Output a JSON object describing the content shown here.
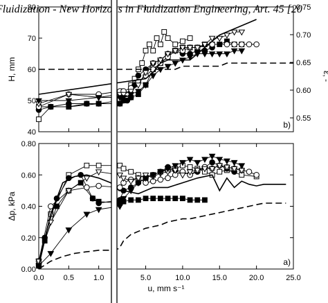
{
  "header": "Fluidization - New Horizons in Fluidization Engineering, Art. 45 [20",
  "chart_data": [
    {
      "panel": "b)",
      "type": "line",
      "ylabel": "H, mm",
      "ylim": [
        40,
        80
      ],
      "yticks": [
        40,
        50,
        60,
        70,
        80
      ],
      "y2label": "ε, -",
      "y2lim": [
        0.525,
        0.75
      ],
      "y2ticks": [
        0.55,
        0.6,
        0.65,
        0.7,
        0.75
      ],
      "xlim": [
        0,
        25
      ],
      "grid": false,
      "series": [
        {
          "marker": "open-square",
          "x": [
            0.0,
            0.2,
            0.5,
            0.8,
            1.0,
            1.5,
            1.8,
            2.5,
            3.0,
            3.5,
            4.0,
            4.5,
            5.0,
            5.5,
            6.0,
            6.5,
            7.0,
            7.5,
            8.0,
            9.0,
            10.0,
            11.0
          ],
          "y": [
            44,
            48,
            48,
            49,
            49,
            50,
            53,
            52,
            55,
            57,
            60,
            62,
            66,
            68,
            66,
            70,
            68,
            72,
            70,
            68,
            69,
            70
          ]
        },
        {
          "marker": "filled-circle",
          "x": [
            0.0,
            0.2,
            0.5,
            0.8,
            1.0,
            1.5,
            2.0,
            2.5,
            3.0,
            3.5,
            4.0,
            5.0,
            6.0,
            7.0,
            8.0,
            9.0,
            10.0,
            11.0,
            12.0,
            13.0,
            14.0
          ],
          "y": [
            47,
            48,
            49,
            49,
            49,
            49,
            50,
            50,
            51,
            55,
            58,
            60,
            62,
            63,
            65,
            66,
            65,
            65,
            66,
            66,
            67
          ]
        },
        {
          "marker": "filled-square",
          "x": [
            0.0,
            0.5,
            1.0,
            1.5,
            2.0,
            3.0,
            4.0,
            5.0,
            6.0,
            7.0,
            8.0,
            9.0,
            10.0,
            11.0,
            12.0,
            13.0,
            14.0,
            15.0,
            16.0,
            17.0,
            18.0
          ],
          "y": [
            48,
            48,
            49,
            49,
            50,
            51,
            52,
            55,
            60,
            62,
            64,
            66,
            67,
            67,
            67,
            68,
            68,
            68,
            69,
            68,
            68
          ]
        },
        {
          "marker": "open-circle",
          "x": [
            0.0,
            0.5,
            1.0,
            1.5,
            2.0,
            3.0,
            4.0,
            5.0,
            6.0,
            7.0,
            8.0,
            9.0,
            10.0,
            11.0,
            12.0,
            14.0,
            16.0,
            17.0,
            18.0,
            19.0,
            20.0
          ],
          "y": [
            48,
            52,
            52,
            53,
            53,
            54,
            56,
            58,
            60,
            62,
            64,
            66,
            66,
            67,
            67,
            68,
            68,
            68,
            68,
            68,
            68
          ]
        },
        {
          "marker": "open-triangle-down",
          "x": [
            0.0,
            0.5,
            1.0,
            1.5,
            2.0,
            3.0,
            4.0,
            5.0,
            6.0,
            7.0,
            8.0,
            9.0,
            10.0,
            11.0,
            12.0,
            13.0,
            14.0,
            15.0,
            16.0,
            17.0,
            18.0
          ],
          "y": [
            49,
            52,
            51,
            52,
            52,
            53,
            55,
            59,
            62,
            63,
            65,
            66,
            67,
            67,
            67,
            68,
            70,
            70,
            71,
            72,
            72
          ]
        },
        {
          "marker": "filled-triangle-down",
          "x": [
            0.0,
            0.5,
            1.0,
            1.5,
            2.0,
            3.0,
            4.0,
            5.0,
            6.0,
            7.0,
            8.0,
            9.0,
            10.0,
            11.0,
            12.0,
            13.0,
            14.0,
            15.0,
            16.0,
            17.0,
            18.0
          ],
          "y": [
            50,
            50,
            51,
            51,
            51,
            52,
            53,
            55,
            58,
            60,
            61,
            62,
            63,
            64,
            65,
            65,
            65,
            65,
            65,
            66,
            66
          ]
        },
        {
          "marker": "none",
          "style": "solid",
          "x": [
            0,
            5,
            6,
            7,
            8,
            9,
            10,
            11,
            12,
            13,
            14,
            15,
            16,
            17,
            18,
            19,
            20
          ],
          "y": [
            52,
            57,
            59,
            62,
            63,
            63,
            63,
            63,
            65,
            67,
            69,
            71,
            72,
            73,
            74,
            75,
            76
          ]
        },
        {
          "marker": "none",
          "style": "dashed",
          "x": [
            0,
            1,
            2,
            3,
            4,
            5,
            6,
            7,
            8,
            9,
            10,
            11,
            12,
            13,
            14,
            15,
            16,
            17,
            18,
            19,
            20,
            21,
            22,
            23,
            24,
            25
          ],
          "y": [
            60,
            60,
            60,
            60,
            60,
            60,
            60,
            60,
            60,
            60,
            61,
            61,
            61,
            61,
            61,
            61,
            62,
            62,
            62,
            62,
            62,
            62,
            62,
            62,
            62,
            62
          ]
        }
      ]
    },
    {
      "panel": "a)",
      "type": "line",
      "xlabel": "u, mm s⁻¹",
      "xlim": [
        0,
        25
      ],
      "xticks": [
        "0.0",
        "0.5",
        "1.0",
        "5.0",
        "10.0",
        "15.0",
        "20.0",
        "25.0"
      ],
      "ylabel": "Δp, kPa",
      "ylim": [
        0,
        0.8
      ],
      "yticks": [
        "0.00",
        "0.20",
        "0.40",
        "0.60",
        "0.80"
      ],
      "grid": false,
      "series": [
        {
          "marker": "open-square",
          "x": [
            0.0,
            0.2,
            0.5,
            0.8,
            1.0,
            1.5,
            2.0,
            3.0,
            4.0,
            5.0,
            6.0,
            7.0,
            8.0,
            9.0,
            10.0,
            11.0,
            12.0,
            13.0,
            14.0,
            15.0,
            16.0,
            18.0,
            20.0
          ],
          "y": [
            0.05,
            0.35,
            0.6,
            0.66,
            0.66,
            0.66,
            0.64,
            0.62,
            0.6,
            0.58,
            0.6,
            0.62,
            0.63,
            0.64,
            0.66,
            0.65,
            0.64,
            0.62,
            0.6,
            0.62,
            0.63,
            0.6,
            0.59
          ]
        },
        {
          "marker": "filled-circle",
          "x": [
            0.0,
            0.1,
            0.3,
            0.5,
            0.7,
            0.9,
            1.0,
            1.5,
            2.0,
            3.0,
            4.0,
            5.0,
            6.0,
            7.0,
            8.0,
            9.0,
            10.0,
            11.0,
            12.0,
            13.0,
            14.0,
            15.0,
            16.0,
            17.0
          ],
          "y": [
            0.02,
            0.2,
            0.45,
            0.58,
            0.6,
            0.45,
            0.42,
            0.44,
            0.5,
            0.52,
            0.55,
            0.58,
            0.6,
            0.62,
            0.65,
            0.63,
            0.62,
            0.6,
            0.62,
            0.65,
            0.68,
            0.66,
            0.64,
            0.62
          ]
        },
        {
          "marker": "filled-square",
          "x": [
            0.0,
            0.1,
            0.3,
            0.5,
            0.7,
            0.9,
            1.0,
            1.5,
            2.0,
            3.0,
            4.0,
            5.0,
            6.0,
            7.0,
            8.0,
            9.0,
            10.0,
            11.0,
            12.0,
            13.0
          ],
          "y": [
            0.02,
            0.18,
            0.4,
            0.5,
            0.55,
            0.45,
            0.43,
            0.42,
            0.43,
            0.44,
            0.44,
            0.45,
            0.45,
            0.45,
            0.45,
            0.45,
            0.45,
            0.44,
            0.44,
            0.44
          ]
        },
        {
          "marker": "open-circle",
          "x": [
            0.0,
            0.2,
            0.5,
            0.8,
            1.0,
            1.5,
            2.0,
            3.0,
            4.0,
            5.0,
            6.0,
            7.0,
            8.0,
            9.0,
            10.0,
            11.0,
            12.0,
            13.0,
            14.0,
            15.0,
            16.0,
            17.0,
            18.0,
            19.0,
            20.0
          ],
          "y": [
            0.05,
            0.4,
            0.5,
            0.52,
            0.53,
            0.52,
            0.55,
            0.57,
            0.58,
            0.55,
            0.56,
            0.57,
            0.58,
            0.6,
            0.62,
            0.6,
            0.63,
            0.65,
            0.64,
            0.66,
            0.65,
            0.64,
            0.63,
            0.62,
            0.6
          ]
        },
        {
          "marker": "open-triangle-down",
          "x": [
            0.0,
            0.2,
            0.5,
            0.8,
            1.0,
            1.5,
            2.0,
            3.0,
            4.0,
            5.0,
            6.0,
            7.0,
            8.0,
            9.0,
            10.0,
            11.0,
            12.0,
            13.0,
            14.0,
            15.0,
            16.0,
            17.0,
            18.0
          ],
          "y": [
            0.05,
            0.3,
            0.5,
            0.58,
            0.62,
            0.6,
            0.58,
            0.56,
            0.58,
            0.6,
            0.59,
            0.61,
            0.62,
            0.63,
            0.6,
            0.62,
            0.63,
            0.64,
            0.64,
            0.66,
            0.65,
            0.64,
            0.63
          ]
        },
        {
          "marker": "filled-triangle-down",
          "x": [
            0.0,
            0.2,
            0.5,
            0.8,
            1.0,
            1.5,
            2.0,
            3.0,
            4.0,
            5.0,
            6.0,
            7.0,
            8.0,
            9.0,
            10.0,
            11.0,
            12.0,
            13.0,
            14.0,
            15.0,
            16.0,
            17.0,
            18.0
          ],
          "y": [
            0.02,
            0.1,
            0.25,
            0.35,
            0.38,
            0.4,
            0.45,
            0.5,
            0.55,
            0.58,
            0.6,
            0.62,
            0.64,
            0.66,
            0.68,
            0.7,
            0.68,
            0.7,
            0.72,
            0.7,
            0.69,
            0.68,
            0.66
          ]
        },
        {
          "marker": "none",
          "style": "solid",
          "x": [
            0.0,
            0.2,
            0.4,
            0.6,
            0.8,
            1.0,
            1.2,
            1.4,
            2,
            4,
            6,
            8,
            10,
            12,
            14,
            15,
            16,
            17,
            18,
            19,
            20,
            21,
            22,
            23,
            24
          ],
          "y": [
            0.02,
            0.35,
            0.55,
            0.59,
            0.6,
            0.58,
            0.55,
            0.5,
            0.5,
            0.48,
            0.52,
            0.52,
            0.55,
            0.58,
            0.6,
            0.5,
            0.58,
            0.52,
            0.56,
            0.54,
            0.53,
            0.54,
            0.54,
            0.54,
            0.54
          ]
        },
        {
          "marker": "none",
          "style": "dashed",
          "x": [
            0.0,
            0.2,
            0.4,
            0.6,
            0.8,
            1.0,
            1.2,
            1.4,
            2,
            3,
            4,
            5,
            6,
            7,
            8,
            9,
            10,
            11,
            12,
            13,
            14,
            15,
            16,
            17,
            18,
            19,
            20,
            21,
            22,
            23,
            24
          ],
          "y": [
            0.0,
            0.05,
            0.08,
            0.1,
            0.11,
            0.12,
            0.12,
            0.13,
            0.18,
            0.22,
            0.24,
            0.26,
            0.27,
            0.28,
            0.3,
            0.31,
            0.32,
            0.32,
            0.33,
            0.34,
            0.35,
            0.36,
            0.37,
            0.38,
            0.39,
            0.4,
            0.41,
            0.42,
            0.42,
            0.42,
            0.42
          ]
        }
      ]
    }
  ]
}
